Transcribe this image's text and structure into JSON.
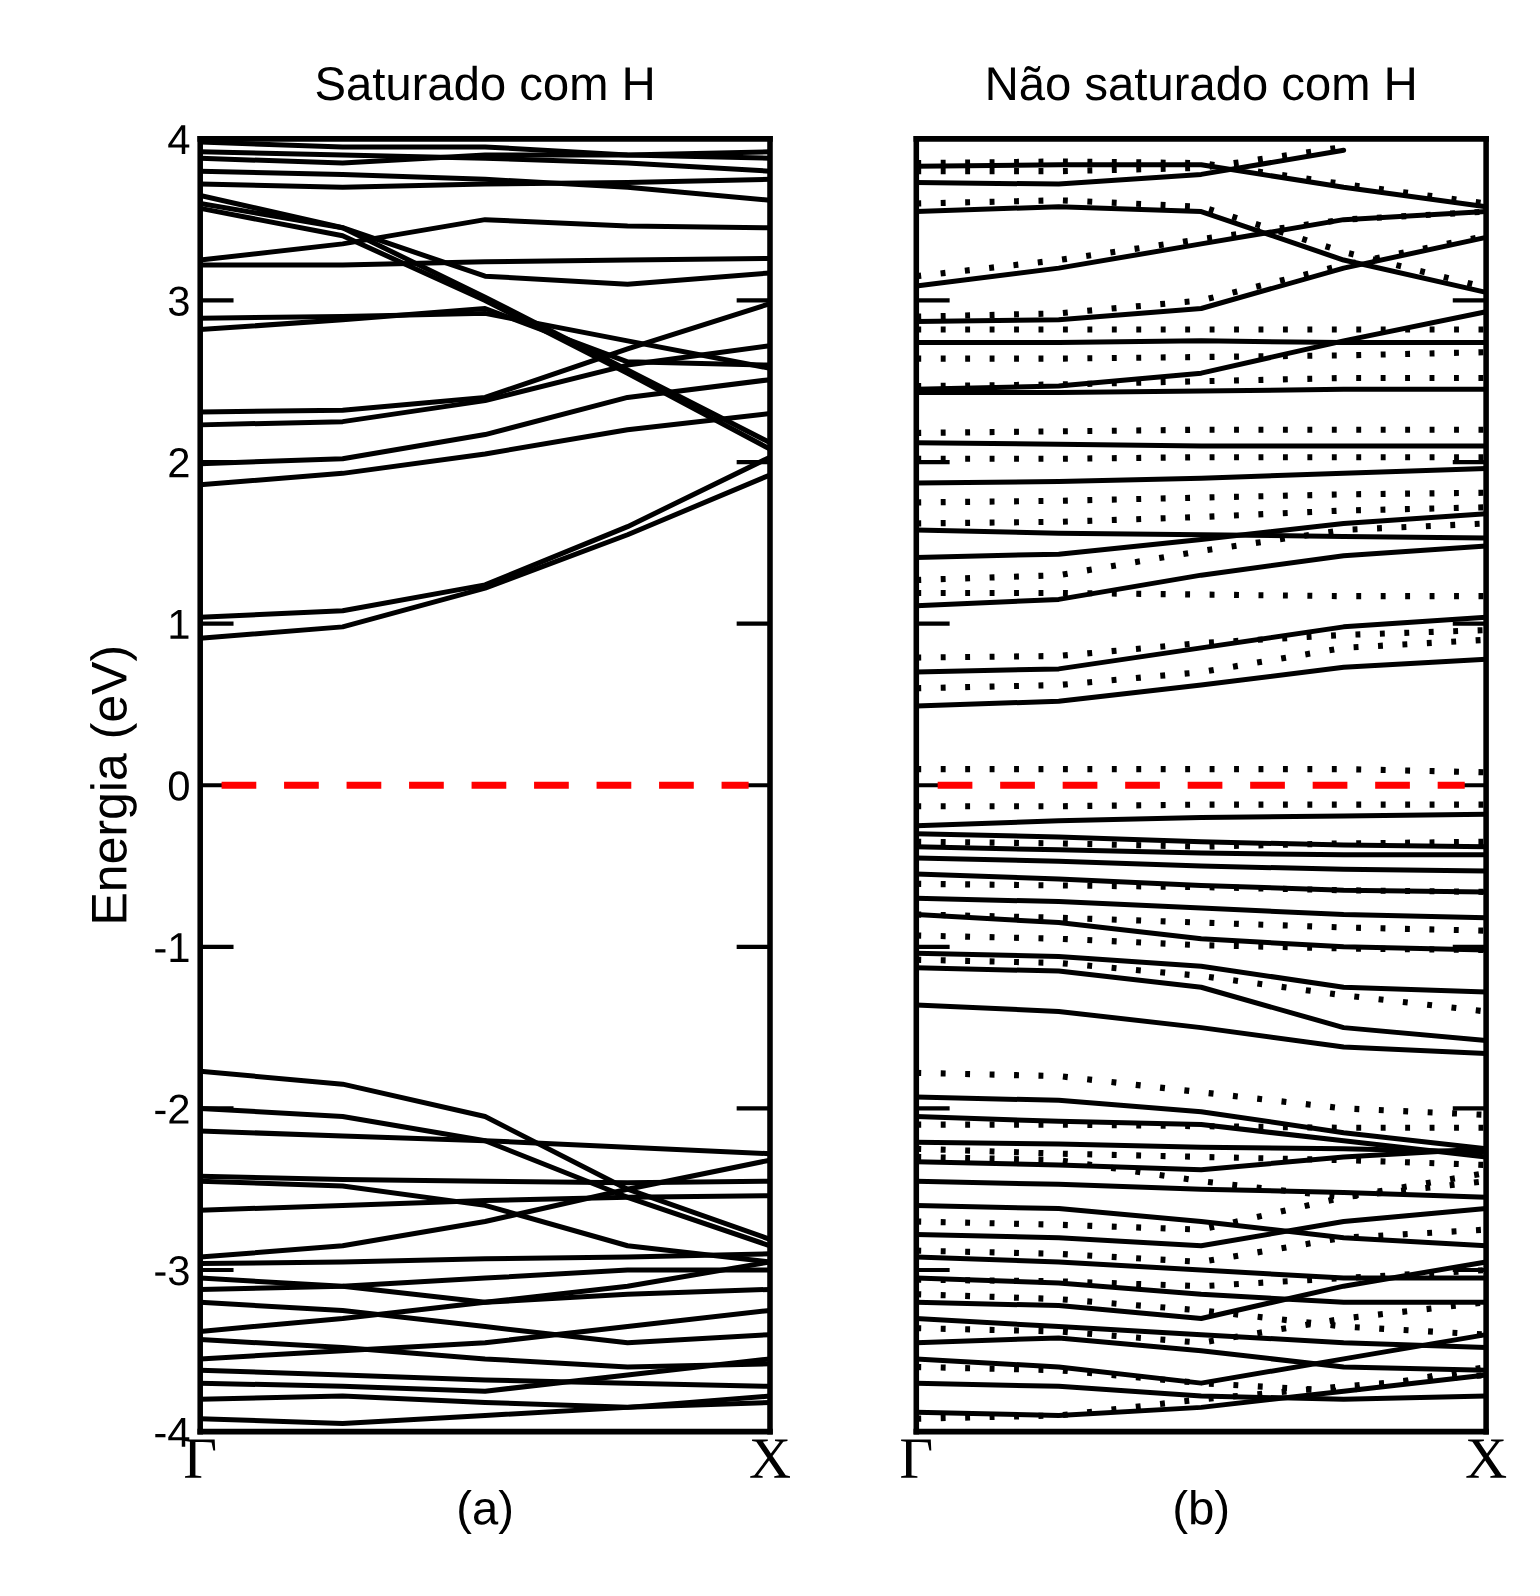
{
  "chart_data": [
    {
      "type": "line",
      "title": "Saturado com H",
      "xlabel": "(a)",
      "ylabel": "Energia (eV)",
      "categories": [
        "Γ",
        null,
        null,
        null,
        "X"
      ],
      "ylim": [
        -4,
        4
      ],
      "yticks": [
        -4,
        -3,
        -2,
        -1,
        0,
        1,
        2,
        3,
        4
      ],
      "ref_lines": [
        {
          "axis": "y",
          "value": 0,
          "color": "#ff0000",
          "line_style": "dashed"
        }
      ],
      "line_style": "solid",
      "marker": "none",
      "series": [
        {
          "color": "#000000",
          "values": [
            0.91,
            0.98,
            1.22,
            1.55,
            1.92
          ]
        },
        {
          "color": "#000000",
          "values": [
            1.04,
            1.08,
            1.24,
            1.6,
            2.03
          ]
        },
        {
          "color": "#000000",
          "values": [
            1.86,
            1.93,
            2.05,
            2.2,
            2.3
          ]
        },
        {
          "color": "#000000",
          "values": [
            1.99,
            2.02,
            2.17,
            2.4,
            2.51
          ]
        },
        {
          "color": "#000000",
          "values": [
            2.23,
            2.25,
            2.38,
            2.6,
            2.72
          ]
        },
        {
          "color": "#000000",
          "values": [
            2.31,
            2.32,
            2.4,
            2.7,
            2.98
          ]
        },
        {
          "color": "#000000",
          "values": [
            3.57,
            3.4,
            3.0,
            2.55,
            2.08
          ]
        },
        {
          "color": "#000000",
          "values": [
            3.6,
            3.45,
            3.02,
            2.57,
            2.12
          ]
        },
        {
          "color": "#000000",
          "values": [
            2.82,
            2.88,
            2.95,
            2.62,
            2.6
          ]
        },
        {
          "color": "#000000",
          "values": [
            2.89,
            2.9,
            2.92,
            2.75,
            2.58
          ]
        },
        {
          "color": "#000000",
          "values": [
            3.22,
            3.22,
            3.24,
            3.25,
            3.26
          ]
        },
        {
          "color": "#000000",
          "values": [
            3.25,
            3.35,
            3.5,
            3.46,
            3.45
          ]
        },
        {
          "color": "#000000",
          "values": [
            3.65,
            3.45,
            3.15,
            3.1,
            3.17
          ]
        },
        {
          "color": "#000000",
          "values": [
            3.92,
            3.9,
            3.88,
            3.85,
            3.8
          ]
        },
        {
          "color": "#000000",
          "values": [
            3.88,
            3.85,
            3.9,
            3.9,
            3.92
          ]
        },
        {
          "color": "#000000",
          "values": [
            3.8,
            3.78,
            3.75,
            3.7,
            3.62
          ]
        },
        {
          "color": "#000000",
          "values": [
            3.98,
            3.95,
            3.95,
            3.9,
            3.88
          ]
        },
        {
          "color": "#000000",
          "values": [
            3.72,
            3.7,
            3.72,
            3.73,
            3.75
          ]
        },
        {
          "color": "#000000",
          "values": [
            -1.77,
            -1.85,
            -2.05,
            -2.5,
            -2.81
          ]
        },
        {
          "color": "#000000",
          "values": [
            -2.0,
            -2.05,
            -2.2,
            -2.55,
            -2.85
          ]
        },
        {
          "color": "#000000",
          "values": [
            -2.14,
            -2.17,
            -2.2,
            -2.24,
            -2.28
          ]
        },
        {
          "color": "#000000",
          "values": [
            -2.42,
            -2.44,
            -2.45,
            -2.46,
            -2.45
          ]
        },
        {
          "color": "#000000",
          "values": [
            -2.45,
            -2.48,
            -2.6,
            -2.85,
            -2.95
          ]
        },
        {
          "color": "#000000",
          "values": [
            -2.63,
            -2.6,
            -2.57,
            -2.55,
            -2.54
          ]
        },
        {
          "color": "#000000",
          "values": [
            -2.92,
            -2.85,
            -2.7,
            -2.5,
            -2.32
          ]
        },
        {
          "color": "#000000",
          "values": [
            -2.96,
            -2.95,
            -2.93,
            -2.92,
            -2.9
          ]
        },
        {
          "color": "#000000",
          "values": [
            -3.05,
            -3.1,
            -3.2,
            -3.1,
            -2.95
          ]
        },
        {
          "color": "#000000",
          "values": [
            -3.12,
            -3.1,
            -3.05,
            -3.0,
            -3.0
          ]
        },
        {
          "color": "#000000",
          "values": [
            -3.2,
            -3.25,
            -3.35,
            -3.45,
            -3.4
          ]
        },
        {
          "color": "#000000",
          "values": [
            -3.38,
            -3.3,
            -3.2,
            -3.15,
            -3.12
          ]
        },
        {
          "color": "#000000",
          "values": [
            -3.43,
            -3.48,
            -3.55,
            -3.6,
            -3.58
          ]
        },
        {
          "color": "#000000",
          "values": [
            -3.55,
            -3.5,
            -3.45,
            -3.35,
            -3.25
          ]
        },
        {
          "color": "#000000",
          "values": [
            -3.62,
            -3.65,
            -3.68,
            -3.7,
            -3.72
          ]
        },
        {
          "color": "#000000",
          "values": [
            -3.7,
            -3.72,
            -3.75,
            -3.65,
            -3.55
          ]
        },
        {
          "color": "#000000",
          "values": [
            -3.8,
            -3.78,
            -3.82,
            -3.85,
            -3.82
          ]
        },
        {
          "color": "#000000",
          "values": [
            -3.92,
            -3.95,
            -3.9,
            -3.85,
            -3.78
          ]
        }
      ]
    },
    {
      "type": "line",
      "title": "Não saturado com H",
      "xlabel": "(b)",
      "tick_labels": "x",
      "categories": [
        "Γ",
        null,
        null,
        null,
        "X"
      ],
      "ylim": [
        -4,
        4
      ],
      "yticks": [
        -4,
        -3,
        -2,
        -1,
        0,
        1,
        2,
        3,
        4
      ],
      "ref_lines": [
        {
          "axis": "y",
          "value": 0,
          "color": "#ff0000",
          "line_style": "dashed"
        }
      ],
      "line_style": "solid",
      "marker": "none",
      "series": [
        {
          "color": "#000000",
          "values": [
            0.49,
            0.52,
            0.62,
            0.73,
            0.78
          ]
        },
        {
          "color": "#000000",
          "values": [
            0.7,
            0.72,
            0.85,
            0.98,
            1.04
          ]
        },
        {
          "color": "#000000",
          "values": [
            1.11,
            1.15,
            1.3,
            1.42,
            1.48
          ]
        },
        {
          "color": "#000000",
          "values": [
            1.41,
            1.43,
            1.52,
            1.62,
            1.68
          ]
        },
        {
          "color": "#000000",
          "values": [
            1.58,
            1.56,
            1.55,
            1.54,
            1.53
          ]
        },
        {
          "color": "#000000",
          "values": [
            1.87,
            1.88,
            1.9,
            1.93,
            1.96
          ]
        },
        {
          "color": "#000000",
          "values": [
            2.12,
            2.11,
            2.1,
            2.1,
            2.1
          ]
        },
        {
          "color": "#000000",
          "values": [
            2.43,
            2.43,
            2.44,
            2.45,
            2.45
          ]
        },
        {
          "color": "#000000",
          "values": [
            2.45,
            2.47,
            2.55,
            2.75,
            2.93
          ]
        },
        {
          "color": "#000000",
          "values": [
            2.74,
            2.74,
            2.75,
            2.74,
            2.74
          ]
        },
        {
          "color": "#000000",
          "values": [
            2.87,
            2.88,
            2.95,
            3.2,
            3.39
          ]
        },
        {
          "color": "#000000",
          "values": [
            3.09,
            3.2,
            3.35,
            3.5,
            3.55
          ]
        },
        {
          "color": "#000000",
          "values": [
            3.55,
            3.58,
            3.55,
            3.25,
            3.05
          ]
        },
        {
          "color": "#000000",
          "values": [
            3.73,
            3.72,
            3.78,
            3.93,
            null
          ]
        },
        {
          "color": "#000000",
          "values": [
            3.83,
            3.84,
            3.84,
            3.7,
            3.58
          ]
        },
        {
          "color": "#000000",
          "line_style": "dotted",
          "values": [
            0.1,
            0.1,
            0.1,
            0.1,
            0.08
          ]
        },
        {
          "color": "#000000",
          "line_style": "dotted",
          "values": [
            0.6,
            0.62,
            0.7,
            0.85,
            0.9
          ]
        },
        {
          "color": "#000000",
          "line_style": "dotted",
          "values": [
            0.79,
            0.8,
            0.88,
            0.93,
            0.96
          ]
        },
        {
          "color": "#000000",
          "line_style": "dotted",
          "values": [
            1.19,
            1.19,
            1.18,
            1.17,
            1.17
          ]
        },
        {
          "color": "#000000",
          "line_style": "dotted",
          "values": [
            1.27,
            1.3,
            1.45,
            1.58,
            1.62
          ]
        },
        {
          "color": "#000000",
          "line_style": "dotted",
          "values": [
            1.62,
            1.63,
            1.66,
            1.7,
            1.72
          ]
        },
        {
          "color": "#000000",
          "line_style": "dotted",
          "values": [
            1.75,
            1.76,
            1.78,
            1.8,
            1.81
          ]
        },
        {
          "color": "#000000",
          "line_style": "dotted",
          "values": [
            2.02,
            2.02,
            2.03,
            2.03,
            2.03
          ]
        },
        {
          "color": "#000000",
          "line_style": "dotted",
          "values": [
            2.18,
            2.19,
            2.2,
            2.2,
            2.2
          ]
        },
        {
          "color": "#000000",
          "line_style": "dotted",
          "values": [
            2.47,
            2.48,
            2.5,
            2.52,
            2.52
          ]
        },
        {
          "color": "#000000",
          "line_style": "dotted",
          "values": [
            2.64,
            2.64,
            2.65,
            2.66,
            2.68
          ]
        },
        {
          "color": "#000000",
          "line_style": "dotted",
          "values": [
            2.82,
            2.82,
            2.82,
            2.82,
            2.82
          ]
        },
        {
          "color": "#000000",
          "line_style": "dotted",
          "values": [
            2.9,
            2.92,
            3.0,
            3.22,
            3.4
          ]
        },
        {
          "color": "#000000",
          "line_style": "dotted",
          "values": [
            3.15,
            3.25,
            3.38,
            3.5,
            3.55
          ]
        },
        {
          "color": "#000000",
          "line_style": "dotted",
          "values": [
            3.6,
            3.62,
            3.58,
            3.3,
            3.08
          ]
        },
        {
          "color": "#000000",
          "line_style": "dotted",
          "values": [
            3.85,
            3.86,
            3.85,
            3.72,
            3.6
          ]
        },
        {
          "color": "#000000",
          "line_style": "dotted",
          "values": [
            3.8,
            3.8,
            3.82,
            3.95,
            null
          ]
        },
        {
          "color": "#000000",
          "values": [
            -0.25,
            -0.22,
            -0.2,
            -0.19,
            -0.18
          ]
        },
        {
          "color": "#000000",
          "values": [
            -0.3,
            -0.32,
            -0.35,
            -0.37,
            -0.38
          ]
        },
        {
          "color": "#000000",
          "values": [
            -0.38,
            -0.4,
            -0.42,
            -0.43,
            -0.43
          ]
        },
        {
          "color": "#000000",
          "values": [
            -0.45,
            -0.47,
            -0.5,
            -0.52,
            -0.53
          ]
        },
        {
          "color": "#000000",
          "values": [
            -0.55,
            -0.58,
            -0.62,
            -0.65,
            -0.66
          ]
        },
        {
          "color": "#000000",
          "values": [
            -0.7,
            -0.72,
            -0.76,
            -0.8,
            -0.82
          ]
        },
        {
          "color": "#000000",
          "values": [
            -0.8,
            -0.85,
            -0.95,
            -1.0,
            -1.02
          ]
        },
        {
          "color": "#000000",
          "values": [
            -1.04,
            -1.06,
            -1.12,
            -1.25,
            -1.28
          ]
        },
        {
          "color": "#000000",
          "values": [
            -1.13,
            -1.15,
            -1.25,
            -1.5,
            -1.58
          ]
        },
        {
          "color": "#000000",
          "values": [
            -1.36,
            -1.4,
            -1.5,
            -1.62,
            -1.66
          ]
        },
        {
          "color": "#000000",
          "values": [
            -1.93,
            -1.95,
            -2.02,
            -2.15,
            -2.25
          ]
        },
        {
          "color": "#000000",
          "values": [
            -2.05,
            -2.08,
            -2.1,
            -2.2,
            -2.3
          ]
        },
        {
          "color": "#000000",
          "values": [
            -2.21,
            -2.22,
            -2.24,
            -2.25,
            -2.27
          ]
        },
        {
          "color": "#000000",
          "values": [
            -2.33,
            -2.35,
            -2.38,
            -2.3,
            -2.25
          ]
        },
        {
          "color": "#000000",
          "values": [
            -2.45,
            -2.47,
            -2.5,
            -2.52,
            -2.55
          ]
        },
        {
          "color": "#000000",
          "values": [
            -2.6,
            -2.62,
            -2.7,
            -2.8,
            -2.85
          ]
        },
        {
          "color": "#000000",
          "values": [
            -2.78,
            -2.8,
            -2.85,
            -2.7,
            -2.62
          ]
        },
        {
          "color": "#000000",
          "values": [
            -2.92,
            -2.95,
            -3.0,
            -3.05,
            -3.05
          ]
        },
        {
          "color": "#000000",
          "values": [
            -3.05,
            -3.08,
            -3.15,
            -3.2,
            -3.2
          ]
        },
        {
          "color": "#000000",
          "values": [
            -3.2,
            -3.22,
            -3.3,
            -3.1,
            -2.95
          ]
        },
        {
          "color": "#000000",
          "values": [
            -3.3,
            -3.35,
            -3.4,
            -3.45,
            -3.48
          ]
        },
        {
          "color": "#000000",
          "values": [
            -3.45,
            -3.42,
            -3.5,
            -3.6,
            -3.62
          ]
        },
        {
          "color": "#000000",
          "values": [
            -3.55,
            -3.6,
            -3.7,
            -3.55,
            -3.4
          ]
        },
        {
          "color": "#000000",
          "values": [
            -3.7,
            -3.72,
            -3.78,
            -3.8,
            -3.78
          ]
        },
        {
          "color": "#000000",
          "values": [
            -3.88,
            -3.9,
            -3.85,
            -3.75,
            -3.65
          ]
        },
        {
          "color": "#000000",
          "line_style": "dotted",
          "values": [
            -0.13,
            -0.13,
            -0.12,
            -0.12,
            -0.12
          ]
        },
        {
          "color": "#000000",
          "line_style": "dotted",
          "values": [
            -0.35,
            -0.36,
            -0.38,
            -0.36,
            -0.35
          ]
        },
        {
          "color": "#000000",
          "line_style": "dotted",
          "values": [
            -0.61,
            -0.62,
            -0.63,
            -0.65,
            -0.66
          ]
        },
        {
          "color": "#000000",
          "line_style": "dotted",
          "values": [
            -0.8,
            -0.82,
            -0.85,
            -0.88,
            -0.9
          ]
        },
        {
          "color": "#000000",
          "line_style": "dotted",
          "values": [
            -0.93,
            -0.95,
            -0.99,
            -1.01,
            -1.02
          ]
        },
        {
          "color": "#000000",
          "line_style": "dotted",
          "values": [
            -1.08,
            -1.1,
            -1.18,
            -1.3,
            -1.4
          ]
        },
        {
          "color": "#000000",
          "line_style": "dotted",
          "values": [
            -1.78,
            -1.8,
            -1.9,
            -2.0,
            -2.04
          ]
        },
        {
          "color": "#000000",
          "line_style": "dotted",
          "values": [
            -2.1,
            -2.1,
            -2.11,
            -2.12,
            -2.12
          ]
        },
        {
          "color": "#000000",
          "line_style": "dotted",
          "values": [
            -2.25,
            -2.28,
            -2.3,
            -2.32,
            -2.35
          ]
        },
        {
          "color": "#000000",
          "line_style": "dotted",
          "values": [
            -2.3,
            -2.32,
            -2.45,
            -2.55,
            -2.4
          ]
        },
        {
          "color": "#000000",
          "line_style": "dotted",
          "values": [
            -2.7,
            -2.72,
            -2.75,
            -2.55,
            -2.45
          ]
        },
        {
          "color": "#000000",
          "line_style": "dotted",
          "values": [
            -2.88,
            -2.9,
            -2.95,
            -2.8,
            -2.75
          ]
        },
        {
          "color": "#000000",
          "line_style": "dotted",
          "values": [
            -3.06,
            -3.07,
            -3.1,
            -3.05,
            -3.0
          ]
        },
        {
          "color": "#000000",
          "line_style": "dotted",
          "values": [
            -3.15,
            -3.18,
            -3.25,
            -3.35,
            -3.4
          ]
        },
        {
          "color": "#000000",
          "line_style": "dotted",
          "values": [
            -3.36,
            -3.38,
            -3.45,
            -3.3,
            -3.2
          ]
        },
        {
          "color": "#000000",
          "line_style": "dotted",
          "values": [
            -3.6,
            -3.62,
            -3.7,
            -3.75,
            -3.6
          ]
        },
        {
          "color": "#000000",
          "line_style": "dotted",
          "values": [
            -3.92,
            -3.9,
            -3.8,
            -3.72,
            -3.65
          ]
        }
      ]
    }
  ]
}
